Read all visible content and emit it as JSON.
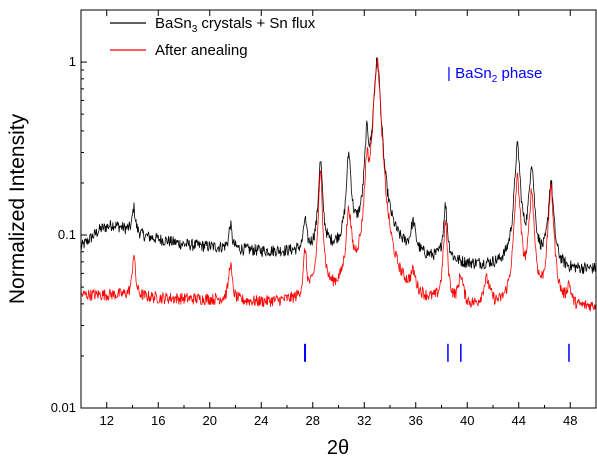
{
  "chart_data": {
    "type": "line",
    "title": "",
    "xlabel": "2θ",
    "ylabel": "Normalized Intensity",
    "x_range": [
      10,
      50
    ],
    "y_range": [
      0.01,
      2
    ],
    "y_scale": "log",
    "grid": false,
    "x_ticks": [
      12,
      16,
      20,
      24,
      28,
      32,
      36,
      40,
      44,
      48
    ],
    "y_ticks": [
      {
        "value": 0.01,
        "label": "0.01"
      },
      {
        "value": 0.1,
        "label": "0.1"
      },
      {
        "value": 1,
        "label": "1"
      }
    ],
    "legend": {
      "position": "top-left",
      "entries": [
        {
          "main": "BaSn",
          "sub": "3",
          "rest": " crystals + Sn flux",
          "color": "#000000"
        },
        {
          "main": "After anealing",
          "sub": "",
          "rest": "",
          "color": "#ff0000"
        }
      ]
    },
    "series": [
      {
        "name": "BaSn3 crystals + Sn flux",
        "color": "#000000",
        "baseline": [
          [
            10,
            0.085
          ],
          [
            11.5,
            0.108
          ],
          [
            12.5,
            0.115
          ],
          [
            13.5,
            0.108
          ],
          [
            15,
            0.098
          ],
          [
            18,
            0.088
          ],
          [
            24,
            0.08
          ],
          [
            28,
            0.078
          ],
          [
            33,
            0.078
          ],
          [
            36,
            0.072
          ],
          [
            40,
            0.066
          ],
          [
            44,
            0.064
          ],
          [
            48,
            0.062
          ],
          [
            50,
            0.063
          ]
        ],
        "peaks": [
          {
            "x": 14.1,
            "y": 0.145,
            "w": 0.12
          },
          {
            "x": 21.6,
            "y": 0.115,
            "w": 0.12
          },
          {
            "x": 27.4,
            "y": 0.12,
            "w": 0.12
          },
          {
            "x": 28.6,
            "y": 0.26,
            "w": 0.16
          },
          {
            "x": 30.8,
            "y": 0.28,
            "w": 0.18
          },
          {
            "x": 32.2,
            "y": 0.32,
            "w": 0.16
          },
          {
            "x": 33.0,
            "y": 1.0,
            "w": 0.28
          },
          {
            "x": 35.8,
            "y": 0.11,
            "w": 0.2
          },
          {
            "x": 38.3,
            "y": 0.145,
            "w": 0.16
          },
          {
            "x": 43.9,
            "y": 0.32,
            "w": 0.22
          },
          {
            "x": 45.0,
            "y": 0.25,
            "w": 0.2
          },
          {
            "x": 46.5,
            "y": 0.2,
            "w": 0.2
          }
        ]
      },
      {
        "name": "After anealing",
        "color": "#ff0000",
        "baseline": [
          [
            10,
            0.045
          ],
          [
            13,
            0.045
          ],
          [
            16,
            0.043
          ],
          [
            20,
            0.042
          ],
          [
            24,
            0.04
          ],
          [
            27,
            0.04
          ],
          [
            30,
            0.041
          ],
          [
            34,
            0.04
          ],
          [
            38,
            0.037
          ],
          [
            42,
            0.035
          ],
          [
            46,
            0.034
          ],
          [
            48,
            0.036
          ],
          [
            50,
            0.038
          ]
        ],
        "peaks": [
          {
            "x": 14.1,
            "y": 0.078,
            "w": 0.12
          },
          {
            "x": 21.6,
            "y": 0.068,
            "w": 0.14
          },
          {
            "x": 27.4,
            "y": 0.078,
            "w": 0.12
          },
          {
            "x": 28.6,
            "y": 0.22,
            "w": 0.16
          },
          {
            "x": 30.8,
            "y": 0.125,
            "w": 0.2
          },
          {
            "x": 32.2,
            "y": 0.2,
            "w": 0.16
          },
          {
            "x": 33.0,
            "y": 1.0,
            "w": 0.28
          },
          {
            "x": 35.8,
            "y": 0.052,
            "w": 0.22
          },
          {
            "x": 38.3,
            "y": 0.115,
            "w": 0.16
          },
          {
            "x": 39.5,
            "y": 0.055,
            "w": 0.2
          },
          {
            "x": 41.5,
            "y": 0.052,
            "w": 0.3
          },
          {
            "x": 43.9,
            "y": 0.21,
            "w": 0.22
          },
          {
            "x": 45.0,
            "y": 0.17,
            "w": 0.2
          },
          {
            "x": 46.5,
            "y": 0.18,
            "w": 0.22
          },
          {
            "x": 47.9,
            "y": 0.048,
            "w": 0.18
          }
        ]
      }
    ],
    "phase_markers": {
      "label_prefix": "| ",
      "label_main": "BaSn",
      "label_sub": "2",
      "label_rest": " phase",
      "color": "#0000ff",
      "positions": [
        27.4,
        38.5,
        39.5,
        47.9
      ],
      "y_low": 0.0185,
      "y_high": 0.0235
    }
  }
}
